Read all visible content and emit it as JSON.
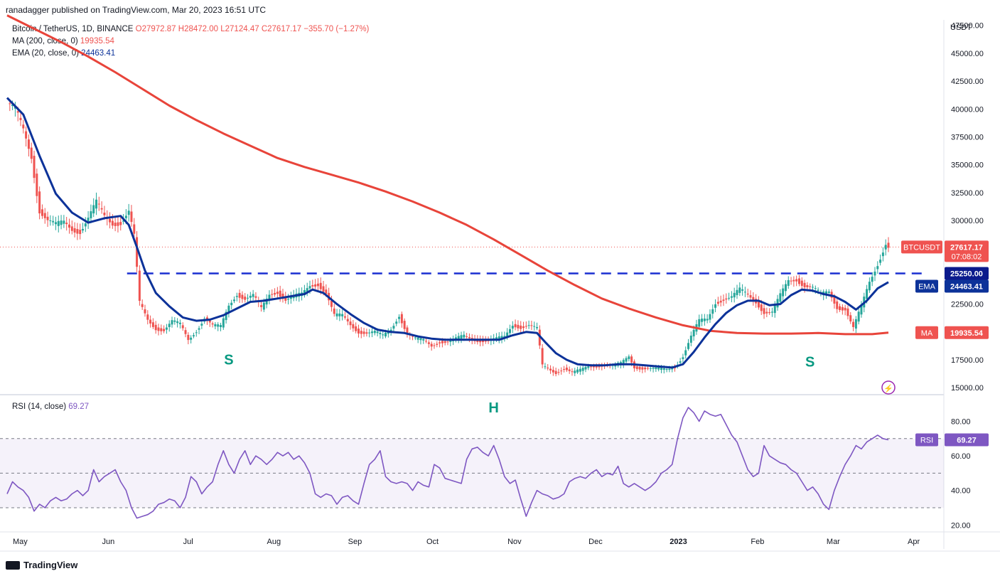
{
  "header": {
    "published": "ranadagger published on TradingView.com, Mar 20, 2023 16:51 UTC",
    "symbol": "Bitcoin / TetherUS, 1D, BINANCE",
    "o": "O27972.87",
    "h": "H28472.00",
    "l": "L27124.47",
    "c": "C27617.17",
    "chg": "−355.70 (−1.27%)",
    "ma_label": "MA (200, close, 0)",
    "ma_value": "19935.54",
    "ema_label": "EMA (20, close, 0)",
    "ema_value": "24463.41",
    "rsi_label": "RSI (14, close)",
    "rsi_value": "69.27",
    "unit": "USDT"
  },
  "footer": {
    "brand": "TradingView"
  },
  "colors": {
    "up": "#26a69a",
    "down": "#ef5350",
    "ma": "#e8443a",
    "ema": "#0c3299",
    "rsi": "#7e57c2",
    "level": "#1a2fd1"
  },
  "chart_data": {
    "type": "line",
    "price_axis_ticks": [
      "47500.00",
      "45000.00",
      "42500.00",
      "40000.00",
      "37500.00",
      "35000.00",
      "32500.00",
      "30000.00",
      "22500.00",
      "17500.00",
      "15000.00"
    ],
    "price_ylim": [
      14500,
      48500
    ],
    "rsi_axis_ticks": [
      "80.00",
      "60.00",
      "40.00",
      "20.00"
    ],
    "rsi_ylim": [
      16,
      95
    ],
    "x_labels": [
      "May",
      "Jun",
      "Jul",
      "Aug",
      "Sep",
      "Oct",
      "Nov",
      "Dec",
      "2023",
      "Feb",
      "Mar",
      "Apr"
    ],
    "badges": {
      "last": {
        "symbol": "BTCUSDT",
        "price": "27617.17",
        "countdown": "07:08:02"
      },
      "level": "25250.00",
      "ema": {
        "label": "EMA",
        "value": "24463.41"
      },
      "ma": {
        "label": "MA",
        "value": "19935.54"
      },
      "rsi": {
        "label": "RSI",
        "value": "69.27"
      }
    },
    "annotations": [
      "S",
      "H",
      "S"
    ],
    "horizontal_level": 25250,
    "close_series": [
      [
        0,
        40500
      ],
      [
        3,
        39800
      ],
      [
        6,
        38000
      ],
      [
        9,
        35800
      ],
      [
        12,
        31000
      ],
      [
        15,
        30000
      ],
      [
        18,
        29500
      ],
      [
        21,
        29800
      ],
      [
        24,
        29300
      ],
      [
        27,
        29100
      ],
      [
        30,
        30200
      ],
      [
        33,
        31500
      ],
      [
        36,
        30300
      ],
      [
        39,
        29800
      ],
      [
        42,
        29900
      ],
      [
        45,
        30800
      ],
      [
        47,
        28500
      ],
      [
        49,
        22500
      ],
      [
        52,
        21100
      ],
      [
        55,
        20400
      ],
      [
        58,
        20200
      ],
      [
        61,
        20900
      ],
      [
        64,
        20600
      ],
      [
        67,
        19300
      ],
      [
        70,
        20200
      ],
      [
        73,
        21300
      ],
      [
        76,
        20500
      ],
      [
        79,
        20400
      ],
      [
        82,
        22400
      ],
      [
        85,
        23500
      ],
      [
        88,
        23000
      ],
      [
        91,
        23200
      ],
      [
        94,
        22000
      ],
      [
        97,
        23400
      ],
      [
        100,
        23700
      ],
      [
        103,
        22900
      ],
      [
        106,
        23100
      ],
      [
        109,
        23300
      ],
      [
        112,
        24200
      ],
      [
        115,
        24400
      ],
      [
        118,
        23500
      ],
      [
        121,
        21400
      ],
      [
        124,
        21400
      ],
      [
        127,
        20700
      ],
      [
        130,
        20100
      ],
      [
        133,
        19900
      ],
      [
        136,
        19900
      ],
      [
        139,
        19600
      ],
      [
        142,
        20300
      ],
      [
        145,
        21600
      ],
      [
        148,
        19800
      ],
      [
        151,
        19300
      ],
      [
        154,
        19200
      ],
      [
        157,
        18800
      ],
      [
        160,
        19200
      ],
      [
        163,
        19100
      ],
      [
        166,
        19300
      ],
      [
        169,
        19600
      ],
      [
        172,
        19400
      ],
      [
        175,
        19300
      ],
      [
        178,
        19200
      ],
      [
        181,
        19300
      ],
      [
        184,
        19500
      ],
      [
        187,
        20700
      ],
      [
        190,
        20500
      ],
      [
        193,
        20600
      ],
      [
        196,
        20200
      ],
      [
        198,
        16900
      ],
      [
        200,
        16700
      ],
      [
        203,
        16400
      ],
      [
        206,
        16800
      ],
      [
        209,
        16300
      ],
      [
        212,
        16500
      ],
      [
        215,
        16900
      ],
      [
        218,
        17000
      ],
      [
        221,
        17100
      ],
      [
        224,
        16900
      ],
      [
        227,
        17100
      ],
      [
        230,
        17800
      ],
      [
        232,
        16900
      ],
      [
        235,
        16800
      ],
      [
        238,
        16700
      ],
      [
        241,
        16600
      ],
      [
        244,
        16600
      ],
      [
        247,
        16900
      ],
      [
        250,
        17900
      ],
      [
        253,
        19600
      ],
      [
        256,
        20900
      ],
      [
        259,
        21100
      ],
      [
        262,
        22700
      ],
      [
        265,
        23000
      ],
      [
        268,
        23100
      ],
      [
        271,
        23700
      ],
      [
        274,
        23300
      ],
      [
        277,
        22800
      ],
      [
        280,
        21800
      ],
      [
        283,
        21700
      ],
      [
        286,
        23200
      ],
      [
        289,
        24600
      ],
      [
        292,
        24800
      ],
      [
        295,
        24200
      ],
      [
        298,
        23900
      ],
      [
        301,
        23300
      ],
      [
        304,
        23600
      ],
      [
        307,
        22300
      ],
      [
        310,
        22100
      ],
      [
        313,
        20300
      ],
      [
        316,
        22200
      ],
      [
        319,
        24500
      ],
      [
        322,
        26200
      ],
      [
        325,
        28000
      ],
      [
        326,
        27617
      ]
    ],
    "ma200_series": [
      [
        0,
        48400
      ],
      [
        10,
        47200
      ],
      [
        20,
        46000
      ],
      [
        30,
        44700
      ],
      [
        40,
        43300
      ],
      [
        50,
        41800
      ],
      [
        60,
        40300
      ],
      [
        70,
        39000
      ],
      [
        80,
        37800
      ],
      [
        90,
        36700
      ],
      [
        100,
        35600
      ],
      [
        110,
        34800
      ],
      [
        120,
        34100
      ],
      [
        130,
        33400
      ],
      [
        140,
        32600
      ],
      [
        150,
        31700
      ],
      [
        160,
        30700
      ],
      [
        170,
        29600
      ],
      [
        180,
        28300
      ],
      [
        190,
        26900
      ],
      [
        200,
        25500
      ],
      [
        210,
        24200
      ],
      [
        220,
        23000
      ],
      [
        230,
        22100
      ],
      [
        240,
        21300
      ],
      [
        250,
        20600
      ],
      [
        260,
        20100
      ],
      [
        270,
        19900
      ],
      [
        280,
        19850
      ],
      [
        290,
        19850
      ],
      [
        300,
        19900
      ],
      [
        310,
        19800
      ],
      [
        320,
        19800
      ],
      [
        326,
        19935
      ]
    ],
    "ema20_series": [
      [
        0,
        41000
      ],
      [
        6,
        39500
      ],
      [
        12,
        35800
      ],
      [
        18,
        32400
      ],
      [
        24,
        30700
      ],
      [
        30,
        29800
      ],
      [
        36,
        30200
      ],
      [
        42,
        30400
      ],
      [
        45,
        29600
      ],
      [
        48,
        27600
      ],
      [
        51,
        25500
      ],
      [
        55,
        23500
      ],
      [
        60,
        22300
      ],
      [
        65,
        21300
      ],
      [
        70,
        21000
      ],
      [
        75,
        21100
      ],
      [
        80,
        21500
      ],
      [
        85,
        22100
      ],
      [
        90,
        22700
      ],
      [
        95,
        22800
      ],
      [
        100,
        23000
      ],
      [
        105,
        23200
      ],
      [
        110,
        23400
      ],
      [
        113,
        23800
      ],
      [
        117,
        23500
      ],
      [
        122,
        22500
      ],
      [
        127,
        21600
      ],
      [
        132,
        20800
      ],
      [
        137,
        20200
      ],
      [
        142,
        20000
      ],
      [
        147,
        19900
      ],
      [
        152,
        19600
      ],
      [
        157,
        19400
      ],
      [
        162,
        19300
      ],
      [
        167,
        19300
      ],
      [
        172,
        19300
      ],
      [
        177,
        19300
      ],
      [
        182,
        19300
      ],
      [
        187,
        19700
      ],
      [
        192,
        20000
      ],
      [
        196,
        19900
      ],
      [
        199,
        19100
      ],
      [
        203,
        18100
      ],
      [
        207,
        17500
      ],
      [
        211,
        17100
      ],
      [
        216,
        17000
      ],
      [
        221,
        17000
      ],
      [
        226,
        17100
      ],
      [
        231,
        17100
      ],
      [
        236,
        17000
      ],
      [
        241,
        16900
      ],
      [
        246,
        16800
      ],
      [
        250,
        17100
      ],
      [
        254,
        18200
      ],
      [
        258,
        19500
      ],
      [
        262,
        20700
      ],
      [
        266,
        21700
      ],
      [
        270,
        22400
      ],
      [
        274,
        22800
      ],
      [
        278,
        22800
      ],
      [
        282,
        22400
      ],
      [
        286,
        22500
      ],
      [
        290,
        23300
      ],
      [
        294,
        23800
      ],
      [
        298,
        23700
      ],
      [
        302,
        23400
      ],
      [
        306,
        23200
      ],
      [
        310,
        22700
      ],
      [
        314,
        22000
      ],
      [
        318,
        22800
      ],
      [
        322,
        23900
      ],
      [
        326,
        24463
      ]
    ],
    "rsi_series": [
      [
        0,
        38
      ],
      [
        2,
        45
      ],
      [
        4,
        42
      ],
      [
        6,
        40
      ],
      [
        8,
        36
      ],
      [
        10,
        28
      ],
      [
        12,
        32
      ],
      [
        14,
        30
      ],
      [
        16,
        34
      ],
      [
        18,
        36
      ],
      [
        20,
        34
      ],
      [
        22,
        35
      ],
      [
        24,
        38
      ],
      [
        26,
        40
      ],
      [
        28,
        37
      ],
      [
        30,
        40
      ],
      [
        32,
        52
      ],
      [
        34,
        45
      ],
      [
        36,
        48
      ],
      [
        38,
        50
      ],
      [
        40,
        52
      ],
      [
        42,
        45
      ],
      [
        44,
        40
      ],
      [
        46,
        30
      ],
      [
        48,
        24
      ],
      [
        50,
        25
      ],
      [
        52,
        26
      ],
      [
        54,
        28
      ],
      [
        56,
        32
      ],
      [
        58,
        33
      ],
      [
        60,
        35
      ],
      [
        62,
        34
      ],
      [
        64,
        30
      ],
      [
        66,
        36
      ],
      [
        68,
        48
      ],
      [
        70,
        45
      ],
      [
        72,
        38
      ],
      [
        74,
        42
      ],
      [
        76,
        45
      ],
      [
        78,
        55
      ],
      [
        80,
        63
      ],
      [
        82,
        55
      ],
      [
        84,
        50
      ],
      [
        86,
        58
      ],
      [
        88,
        63
      ],
      [
        90,
        55
      ],
      [
        92,
        60
      ],
      [
        94,
        58
      ],
      [
        96,
        55
      ],
      [
        98,
        58
      ],
      [
        100,
        62
      ],
      [
        102,
        60
      ],
      [
        104,
        62
      ],
      [
        106,
        58
      ],
      [
        108,
        60
      ],
      [
        110,
        56
      ],
      [
        112,
        50
      ],
      [
        114,
        38
      ],
      [
        116,
        36
      ],
      [
        118,
        38
      ],
      [
        120,
        37
      ],
      [
        122,
        32
      ],
      [
        124,
        36
      ],
      [
        126,
        37
      ],
      [
        128,
        34
      ],
      [
        130,
        32
      ],
      [
        132,
        44
      ],
      [
        134,
        55
      ],
      [
        136,
        58
      ],
      [
        138,
        63
      ],
      [
        140,
        48
      ],
      [
        142,
        45
      ],
      [
        144,
        44
      ],
      [
        146,
        45
      ],
      [
        148,
        44
      ],
      [
        150,
        40
      ],
      [
        152,
        45
      ],
      [
        154,
        43
      ],
      [
        156,
        42
      ],
      [
        158,
        55
      ],
      [
        160,
        53
      ],
      [
        162,
        47
      ],
      [
        164,
        46
      ],
      [
        166,
        45
      ],
      [
        168,
        44
      ],
      [
        170,
        58
      ],
      [
        172,
        64
      ],
      [
        174,
        65
      ],
      [
        176,
        62
      ],
      [
        178,
        60
      ],
      [
        180,
        66
      ],
      [
        182,
        58
      ],
      [
        184,
        48
      ],
      [
        186,
        44
      ],
      [
        188,
        46
      ],
      [
        190,
        35
      ],
      [
        192,
        25
      ],
      [
        194,
        33
      ],
      [
        196,
        40
      ],
      [
        198,
        38
      ],
      [
        200,
        37
      ],
      [
        202,
        35
      ],
      [
        204,
        36
      ],
      [
        206,
        38
      ],
      [
        208,
        45
      ],
      [
        210,
        47
      ],
      [
        212,
        48
      ],
      [
        214,
        47
      ],
      [
        216,
        50
      ],
      [
        218,
        52
      ],
      [
        220,
        48
      ],
      [
        222,
        50
      ],
      [
        224,
        49
      ],
      [
        226,
        54
      ],
      [
        228,
        44
      ],
      [
        230,
        42
      ],
      [
        232,
        44
      ],
      [
        234,
        42
      ],
      [
        236,
        40
      ],
      [
        238,
        42
      ],
      [
        240,
        45
      ],
      [
        242,
        50
      ],
      [
        244,
        52
      ],
      [
        246,
        55
      ],
      [
        248,
        70
      ],
      [
        250,
        82
      ],
      [
        252,
        88
      ],
      [
        254,
        85
      ],
      [
        256,
        80
      ],
      [
        258,
        86
      ],
      [
        260,
        84
      ],
      [
        262,
        83
      ],
      [
        264,
        84
      ],
      [
        266,
        78
      ],
      [
        268,
        72
      ],
      [
        270,
        68
      ],
      [
        272,
        60
      ],
      [
        274,
        52
      ],
      [
        276,
        48
      ],
      [
        278,
        50
      ],
      [
        280,
        66
      ],
      [
        282,
        60
      ],
      [
        284,
        58
      ],
      [
        286,
        56
      ],
      [
        288,
        55
      ],
      [
        290,
        52
      ],
      [
        292,
        50
      ],
      [
        294,
        45
      ],
      [
        296,
        40
      ],
      [
        298,
        42
      ],
      [
        300,
        38
      ],
      [
        302,
        32
      ],
      [
        304,
        29
      ],
      [
        306,
        40
      ],
      [
        308,
        48
      ],
      [
        310,
        55
      ],
      [
        312,
        60
      ],
      [
        314,
        66
      ],
      [
        316,
        64
      ],
      [
        318,
        68
      ],
      [
        320,
        70
      ],
      [
        322,
        72
      ],
      [
        324,
        70
      ],
      [
        326,
        69.27
      ]
    ]
  }
}
